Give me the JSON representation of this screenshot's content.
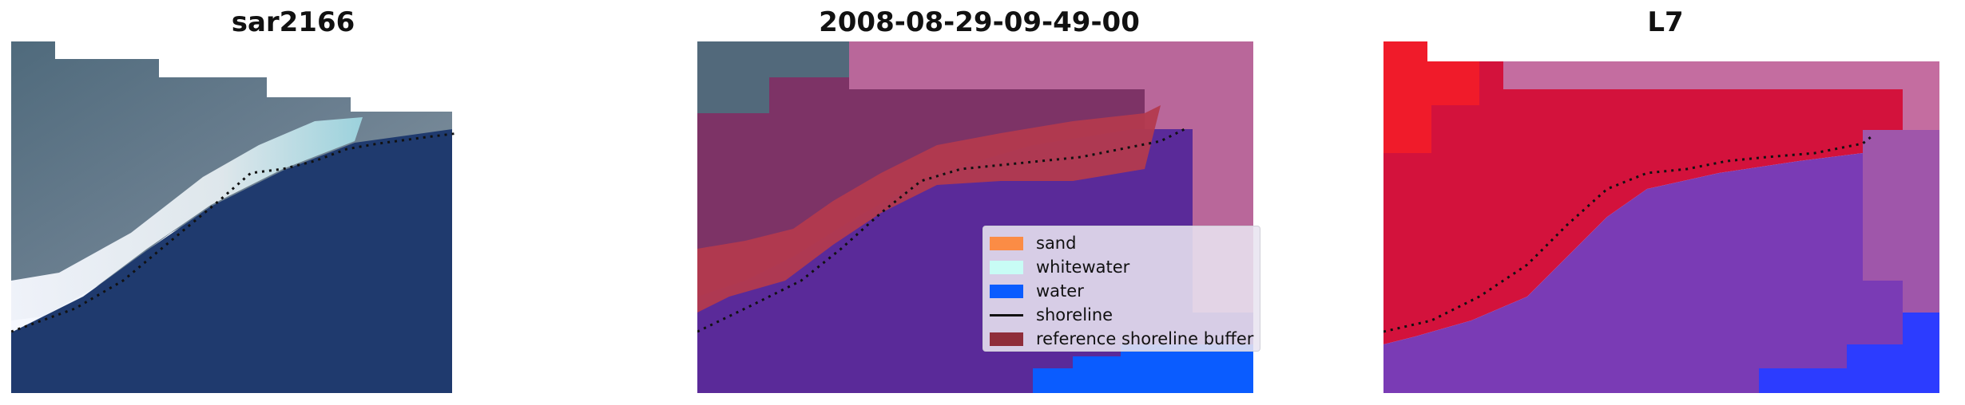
{
  "panels": [
    {
      "title": "sar2166"
    },
    {
      "title": "2008-08-29-09-49-00"
    },
    {
      "title": "L7"
    }
  ],
  "legend": {
    "items": [
      {
        "label": "sand",
        "color": "#fb8c45",
        "kind": "patch"
      },
      {
        "label": "whitewater",
        "color": "#c8fcf5",
        "kind": "patch"
      },
      {
        "label": "water",
        "color": "#0a5cff",
        "kind": "patch"
      },
      {
        "label": "shoreline",
        "color": "#111111",
        "kind": "line"
      },
      {
        "label": "reference shoreline buffer",
        "color": "#8f2d3a",
        "kind": "patch"
      }
    ]
  },
  "colors": {
    "water_dark": "#1f3a6e",
    "land_gray": "#5c6f7e",
    "class_purple": "#5a2a99",
    "buffer_red": "#b33a4e",
    "land_mauve": "#b9679a",
    "land_plum": "#7d3366",
    "index_red": "#d3123c",
    "index_purple": "#7a3bb5",
    "index_blue": "#2c3cff"
  }
}
